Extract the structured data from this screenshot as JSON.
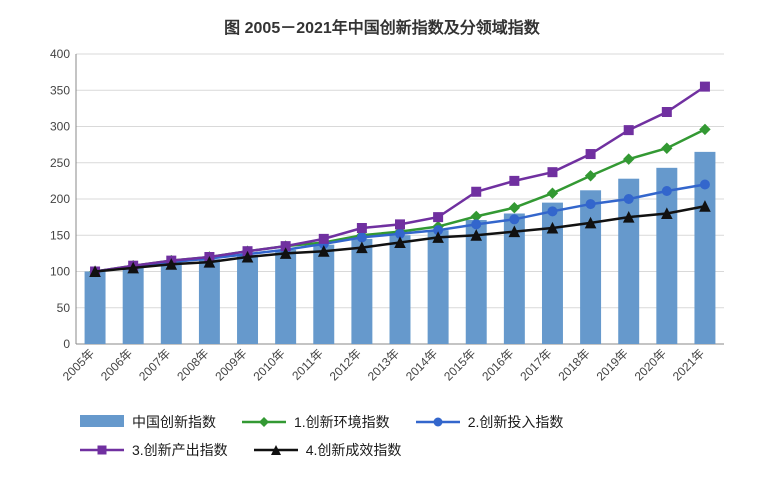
{
  "chart": {
    "type": "bar+line",
    "title": "图 2005－2021年中国创新指数及分领域指数",
    "title_fontsize": 16,
    "title_color": "#333333",
    "background_color": "#ffffff",
    "grid_color": "#d9d9d9",
    "axis_color": "#888888",
    "categories": [
      "2005年",
      "2006年",
      "2007年",
      "2008年",
      "2009年",
      "2010年",
      "2011年",
      "2012年",
      "2013年",
      "2014年",
      "2015年",
      "2016年",
      "2017年",
      "2018年",
      "2019年",
      "2020年",
      "2021年"
    ],
    "ylim": [
      0,
      400
    ],
    "ytick_step": 50,
    "label_fontsize": 12,
    "xlabel_rotation": -45,
    "bar_series": {
      "name": "中国创新指数",
      "color": "#6699cc",
      "bar_width_ratio": 0.55,
      "values": [
        100,
        106,
        112,
        117,
        123,
        130,
        137,
        145,
        150,
        157,
        171,
        180,
        195,
        212,
        228,
        243,
        265
      ]
    },
    "line_series": [
      {
        "name": "1.创新环境指数",
        "color": "#339933",
        "marker": "diamond",
        "marker_size": 10,
        "line_width": 2.5,
        "values": [
          100,
          108,
          115,
          120,
          128,
          135,
          140,
          150,
          155,
          162,
          176,
          188,
          208,
          232,
          255,
          270,
          296
        ]
      },
      {
        "name": "2.创新投入指数",
        "color": "#3366cc",
        "marker": "circle",
        "marker_size": 9,
        "line_width": 2.5,
        "values": [
          100,
          107,
          113,
          118,
          124,
          130,
          138,
          147,
          152,
          157,
          165,
          172,
          183,
          193,
          200,
          211,
          220
        ]
      },
      {
        "name": "3.创新产出指数",
        "color": "#7030a0",
        "marker": "square",
        "marker_size": 9,
        "line_width": 2.5,
        "values": [
          100,
          108,
          115,
          120,
          128,
          135,
          145,
          160,
          165,
          175,
          210,
          225,
          237,
          262,
          295,
          320,
          355
        ]
      },
      {
        "name": "4.创新成效指数",
        "color": "#111111",
        "marker": "triangle",
        "marker_size": 10,
        "line_width": 2.5,
        "values": [
          100,
          105,
          110,
          113,
          120,
          125,
          128,
          133,
          140,
          147,
          150,
          155,
          160,
          167,
          175,
          180,
          190
        ]
      }
    ],
    "legend": {
      "items": [
        {
          "key": "bar",
          "label": "中国创新指数"
        },
        {
          "key": "line0",
          "label": "1.创新环境指数"
        },
        {
          "key": "line1",
          "label": "2.创新投入指数"
        },
        {
          "key": "line2",
          "label": "3.创新产出指数"
        },
        {
          "key": "line3",
          "label": "4.创新成效指数"
        }
      ]
    }
  }
}
